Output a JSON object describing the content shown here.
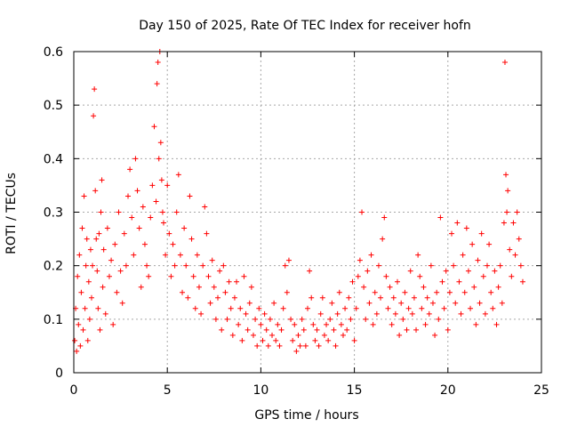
{
  "chart_data": {
    "type": "scatter",
    "title": "Day 150 of 2025, Rate Of TEC Index for receiver hofn",
    "xlabel": "GPS time / hours",
    "ylabel": "ROTI / TECUs",
    "xlim": [
      0,
      25
    ],
    "ylim": [
      0,
      0.6
    ],
    "xticks": [
      0,
      5,
      10,
      15,
      20,
      25
    ],
    "xtick_labels": [
      "0",
      "5",
      "10",
      "15",
      "20",
      "25"
    ],
    "yticks": [
      0,
      0.1,
      0.2,
      0.3,
      0.4,
      0.5,
      0.6
    ],
    "ytick_labels": [
      "0",
      "0.1",
      "0.2",
      "0.3",
      "0.4",
      "0.5",
      "0.6"
    ],
    "grid": true,
    "marker": "+",
    "marker_color": "#ff0000",
    "series": [
      {
        "name": "ROTI",
        "points": [
          [
            0.05,
            0.06
          ],
          [
            0.1,
            0.12
          ],
          [
            0.15,
            0.04
          ],
          [
            0.2,
            0.18
          ],
          [
            0.25,
            0.09
          ],
          [
            0.3,
            0.22
          ],
          [
            0.35,
            0.05
          ],
          [
            0.4,
            0.15
          ],
          [
            0.45,
            0.27
          ],
          [
            0.5,
            0.08
          ],
          [
            0.55,
            0.33
          ],
          [
            0.6,
            0.12
          ],
          [
            0.65,
            0.2
          ],
          [
            0.7,
            0.25
          ],
          [
            0.75,
            0.06
          ],
          [
            0.8,
            0.17
          ],
          [
            0.85,
            0.1
          ],
          [
            0.9,
            0.23
          ],
          [
            0.95,
            0.14
          ],
          [
            1.0,
            0.2
          ],
          [
            1.05,
            0.48
          ],
          [
            1.1,
            0.53
          ],
          [
            1.15,
            0.34
          ],
          [
            1.2,
            0.25
          ],
          [
            1.25,
            0.19
          ],
          [
            1.3,
            0.12
          ],
          [
            1.35,
            0.26
          ],
          [
            1.4,
            0.08
          ],
          [
            1.45,
            0.3
          ],
          [
            1.5,
            0.36
          ],
          [
            1.55,
            0.16
          ],
          [
            1.6,
            0.23
          ],
          [
            1.7,
            0.11
          ],
          [
            1.8,
            0.27
          ],
          [
            1.9,
            0.18
          ],
          [
            2.0,
            0.21
          ],
          [
            2.1,
            0.09
          ],
          [
            2.2,
            0.24
          ],
          [
            2.3,
            0.15
          ],
          [
            2.4,
            0.3
          ],
          [
            2.5,
            0.19
          ],
          [
            2.6,
            0.13
          ],
          [
            2.7,
            0.26
          ],
          [
            2.8,
            0.2
          ],
          [
            2.9,
            0.33
          ],
          [
            3.0,
            0.38
          ],
          [
            3.1,
            0.29
          ],
          [
            3.2,
            0.22
          ],
          [
            3.3,
            0.4
          ],
          [
            3.4,
            0.34
          ],
          [
            3.5,
            0.27
          ],
          [
            3.6,
            0.16
          ],
          [
            3.7,
            0.31
          ],
          [
            3.8,
            0.24
          ],
          [
            3.9,
            0.2
          ],
          [
            4.0,
            0.18
          ],
          [
            4.1,
            0.29
          ],
          [
            4.2,
            0.35
          ],
          [
            4.3,
            0.46
          ],
          [
            4.4,
            0.32
          ],
          [
            4.45,
            0.54
          ],
          [
            4.5,
            0.58
          ],
          [
            4.55,
            0.4
          ],
          [
            4.6,
            0.6
          ],
          [
            4.65,
            0.43
          ],
          [
            4.7,
            0.36
          ],
          [
            4.75,
            0.3
          ],
          [
            4.8,
            0.28
          ],
          [
            4.9,
            0.22
          ],
          [
            5.0,
            0.35
          ],
          [
            5.1,
            0.26
          ],
          [
            5.2,
            0.18
          ],
          [
            5.3,
            0.24
          ],
          [
            5.4,
            0.2
          ],
          [
            5.5,
            0.3
          ],
          [
            5.6,
            0.37
          ],
          [
            5.7,
            0.22
          ],
          [
            5.8,
            0.15
          ],
          [
            5.9,
            0.27
          ],
          [
            6.0,
            0.2
          ],
          [
            6.1,
            0.14
          ],
          [
            6.2,
            0.33
          ],
          [
            6.3,
            0.25
          ],
          [
            6.4,
            0.18
          ],
          [
            6.5,
            0.12
          ],
          [
            6.6,
            0.22
          ],
          [
            6.7,
            0.16
          ],
          [
            6.8,
            0.11
          ],
          [
            6.9,
            0.2
          ],
          [
            7.0,
            0.31
          ],
          [
            7.1,
            0.26
          ],
          [
            7.2,
            0.18
          ],
          [
            7.3,
            0.13
          ],
          [
            7.4,
            0.21
          ],
          [
            7.5,
            0.16
          ],
          [
            7.6,
            0.1
          ],
          [
            7.7,
            0.14
          ],
          [
            7.8,
            0.19
          ],
          [
            7.9,
            0.08
          ],
          [
            8.0,
            0.2
          ],
          [
            8.1,
            0.15
          ],
          [
            8.2,
            0.1
          ],
          [
            8.3,
            0.17
          ],
          [
            8.4,
            0.12
          ],
          [
            8.5,
            0.07
          ],
          [
            8.6,
            0.14
          ],
          [
            8.7,
            0.17
          ],
          [
            8.8,
            0.09
          ],
          [
            8.9,
            0.12
          ],
          [
            9.0,
            0.06
          ],
          [
            9.1,
            0.18
          ],
          [
            9.2,
            0.11
          ],
          [
            9.3,
            0.08
          ],
          [
            9.4,
            0.13
          ],
          [
            9.5,
            0.16
          ],
          [
            9.6,
            0.07
          ],
          [
            9.7,
            0.1
          ],
          [
            9.8,
            0.05
          ],
          [
            9.9,
            0.12
          ],
          [
            10.0,
            0.09
          ],
          [
            10.1,
            0.06
          ],
          [
            10.2,
            0.11
          ],
          [
            10.3,
            0.08
          ],
          [
            10.4,
            0.05
          ],
          [
            10.5,
            0.1
          ],
          [
            10.6,
            0.07
          ],
          [
            10.7,
            0.13
          ],
          [
            10.8,
            0.06
          ],
          [
            10.9,
            0.09
          ],
          [
            11.0,
            0.05
          ],
          [
            11.1,
            0.08
          ],
          [
            11.2,
            0.12
          ],
          [
            11.3,
            0.2
          ],
          [
            11.4,
            0.15
          ],
          [
            11.5,
            0.21
          ],
          [
            11.6,
            0.1
          ],
          [
            11.7,
            0.06
          ],
          [
            11.8,
            0.09
          ],
          [
            11.9,
            0.04
          ],
          [
            12.0,
            0.07
          ],
          [
            12.1,
            0.05
          ],
          [
            12.2,
            0.1
          ],
          [
            12.3,
            0.08
          ],
          [
            12.4,
            0.05
          ],
          [
            12.5,
            0.12
          ],
          [
            12.6,
            0.19
          ],
          [
            12.7,
            0.14
          ],
          [
            12.8,
            0.09
          ],
          [
            12.9,
            0.06
          ],
          [
            13.0,
            0.08
          ],
          [
            13.1,
            0.05
          ],
          [
            13.2,
            0.11
          ],
          [
            13.3,
            0.14
          ],
          [
            13.4,
            0.07
          ],
          [
            13.5,
            0.09
          ],
          [
            13.6,
            0.06
          ],
          [
            13.7,
            0.1
          ],
          [
            13.8,
            0.13
          ],
          [
            13.9,
            0.08
          ],
          [
            14.0,
            0.05
          ],
          [
            14.1,
            0.11
          ],
          [
            14.2,
            0.15
          ],
          [
            14.3,
            0.09
          ],
          [
            14.4,
            0.07
          ],
          [
            14.5,
            0.12
          ],
          [
            14.6,
            0.08
          ],
          [
            14.7,
            0.14
          ],
          [
            14.8,
            0.1
          ],
          [
            14.9,
            0.17
          ],
          [
            15.0,
            0.06
          ],
          [
            15.1,
            0.12
          ],
          [
            15.2,
            0.18
          ],
          [
            15.3,
            0.21
          ],
          [
            15.4,
            0.3
          ],
          [
            15.5,
            0.16
          ],
          [
            15.6,
            0.1
          ],
          [
            15.7,
            0.19
          ],
          [
            15.8,
            0.13
          ],
          [
            15.9,
            0.22
          ],
          [
            16.0,
            0.09
          ],
          [
            16.1,
            0.15
          ],
          [
            16.2,
            0.11
          ],
          [
            16.3,
            0.2
          ],
          [
            16.4,
            0.14
          ],
          [
            16.5,
            0.25
          ],
          [
            16.6,
            0.29
          ],
          [
            16.7,
            0.18
          ],
          [
            16.8,
            0.12
          ],
          [
            16.9,
            0.16
          ],
          [
            17.0,
            0.09
          ],
          [
            17.1,
            0.14
          ],
          [
            17.2,
            0.11
          ],
          [
            17.3,
            0.17
          ],
          [
            17.4,
            0.07
          ],
          [
            17.5,
            0.13
          ],
          [
            17.6,
            0.1
          ],
          [
            17.7,
            0.15
          ],
          [
            17.8,
            0.08
          ],
          [
            17.9,
            0.12
          ],
          [
            18.0,
            0.19
          ],
          [
            18.1,
            0.11
          ],
          [
            18.2,
            0.14
          ],
          [
            18.3,
            0.08
          ],
          [
            18.4,
            0.22
          ],
          [
            18.5,
            0.18
          ],
          [
            18.6,
            0.12
          ],
          [
            18.7,
            0.16
          ],
          [
            18.8,
            0.09
          ],
          [
            18.9,
            0.14
          ],
          [
            19.0,
            0.11
          ],
          [
            19.1,
            0.2
          ],
          [
            19.2,
            0.13
          ],
          [
            19.3,
            0.07
          ],
          [
            19.4,
            0.15
          ],
          [
            19.5,
            0.1
          ],
          [
            19.6,
            0.29
          ],
          [
            19.7,
            0.17
          ],
          [
            19.8,
            0.12
          ],
          [
            19.9,
            0.19
          ],
          [
            20.0,
            0.08
          ],
          [
            20.1,
            0.15
          ],
          [
            20.2,
            0.26
          ],
          [
            20.3,
            0.2
          ],
          [
            20.4,
            0.13
          ],
          [
            20.5,
            0.28
          ],
          [
            20.6,
            0.17
          ],
          [
            20.7,
            0.11
          ],
          [
            20.8,
            0.22
          ],
          [
            20.9,
            0.15
          ],
          [
            21.0,
            0.27
          ],
          [
            21.1,
            0.19
          ],
          [
            21.2,
            0.12
          ],
          [
            21.3,
            0.24
          ],
          [
            21.4,
            0.16
          ],
          [
            21.5,
            0.09
          ],
          [
            21.6,
            0.21
          ],
          [
            21.7,
            0.13
          ],
          [
            21.8,
            0.26
          ],
          [
            21.9,
            0.18
          ],
          [
            22.0,
            0.11
          ],
          [
            22.1,
            0.2
          ],
          [
            22.2,
            0.24
          ],
          [
            22.3,
            0.15
          ],
          [
            22.4,
            0.12
          ],
          [
            22.5,
            0.19
          ],
          [
            22.6,
            0.09
          ],
          [
            22.7,
            0.16
          ],
          [
            22.8,
            0.2
          ],
          [
            22.9,
            0.13
          ],
          [
            23.0,
            0.28
          ],
          [
            23.05,
            0.58
          ],
          [
            23.1,
            0.37
          ],
          [
            23.15,
            0.3
          ],
          [
            23.2,
            0.34
          ],
          [
            23.3,
            0.23
          ],
          [
            23.4,
            0.18
          ],
          [
            23.5,
            0.28
          ],
          [
            23.6,
            0.22
          ],
          [
            23.7,
            0.3
          ],
          [
            23.8,
            0.25
          ],
          [
            23.9,
            0.2
          ],
          [
            24.0,
            0.17
          ]
        ]
      }
    ]
  }
}
